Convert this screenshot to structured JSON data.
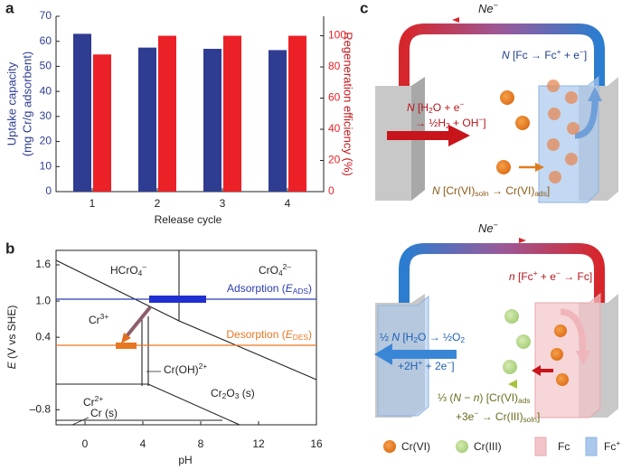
{
  "panel_a": {
    "label": "a",
    "type": "bar",
    "categories": [
      "1",
      "2",
      "3",
      "4"
    ],
    "xlabel": "Release cycle",
    "ylabel": [
      "Uptake capacity",
      "(mg Cr/g adsorbent)"
    ],
    "y2label": "Regeneration efficiency (%)",
    "ylim": [
      0,
      70
    ],
    "yticks": [
      0,
      10,
      20,
      30,
      40,
      50,
      60,
      70
    ],
    "y2lim": [
      0,
      112.5
    ],
    "y2ticks": [
      0,
      20,
      40,
      60,
      80,
      100
    ],
    "series": [
      {
        "color": "#2e3d92",
        "values": [
          63,
          57.5,
          57,
          56.5
        ]
      },
      {
        "color": "#ec2027",
        "axis": "y2",
        "values": [
          88,
          100,
          100,
          100
        ]
      }
    ]
  },
  "panel_b": {
    "label": "b",
    "xlabel": "pH",
    "ylabel": [
      [
        "E",
        "i"
      ],
      [
        " (V vs SHE)"
      ]
    ],
    "xlim": [
      -2,
      16
    ],
    "xticks": [
      0,
      4,
      8,
      12,
      16
    ],
    "ylim": [
      -1.05,
      1.84
    ],
    "yticks": [
      {
        "value": -0.8,
        "label": "–0.8"
      },
      0.4,
      {
        "value": 1,
        "label": "1.0"
      },
      1.6
    ],
    "adsorption": [
      [
        "Adsorption ("
      ],
      [
        "E",
        "i"
      ],
      [
        "ADS",
        "sub"
      ],
      [
        ")"
      ]
    ],
    "desorption": [
      [
        "Desorption ("
      ],
      [
        "E",
        "i"
      ],
      [
        "DES",
        "sub"
      ],
      [
        ")"
      ]
    ],
    "species": [
      [
        [
          "HCrO"
        ],
        [
          "4",
          "sub"
        ],
        [
          "–",
          "sup"
        ]
      ],
      [
        [
          "CrO"
        ],
        [
          "4",
          "sub"
        ],
        [
          "2–",
          "sup"
        ]
      ],
      [
        [
          "Cr"
        ],
        [
          "3+",
          "sup"
        ]
      ],
      [
        [
          "Cr(OH)"
        ],
        [
          "2+",
          "sup"
        ]
      ],
      [
        [
          "Cr"
        ],
        [
          "2+",
          "sup"
        ]
      ],
      [
        [
          "Cr"
        ],
        [
          "2",
          "sub"
        ],
        [
          "O"
        ],
        [
          "3",
          "sub"
        ],
        [
          " (s)"
        ]
      ],
      [
        [
          "Cr (s)"
        ]
      ]
    ]
  },
  "panel_c": {
    "label": "c",
    "top": {
      "current": [
        [
          "Ne",
          "i"
        ],
        [
          "−",
          "sup"
        ]
      ],
      "fc": [
        [
          "N",
          "i"
        ],
        [
          " [Fc → Fc"
        ],
        [
          "+",
          "sup"
        ],
        [
          " + e"
        ],
        [
          "−",
          "sup"
        ],
        [
          "]"
        ]
      ],
      "water": [
        [
          [
            "N",
            "i"
          ],
          [
            " [H"
          ],
          [
            "2",
            "sub"
          ],
          [
            "O + e"
          ],
          [
            "−",
            "sup"
          ]
        ],
        [
          [
            "→ ½H"
          ],
          [
            "2",
            "sub"
          ],
          [
            " + OH"
          ],
          [
            "−",
            "sup"
          ],
          [
            "]"
          ]
        ]
      ],
      "cr": [
        [
          "N",
          "i"
        ],
        [
          " [Cr(VI)"
        ],
        [
          "soln",
          "sub"
        ],
        [
          " → Cr(VI)"
        ],
        [
          "ads",
          "sub"
        ],
        [
          "]"
        ]
      ]
    },
    "bottom": {
      "current": [
        [
          "Ne",
          "i"
        ],
        [
          "−",
          "sup"
        ]
      ],
      "fc": [
        [
          "n",
          "i"
        ],
        [
          " [Fc"
        ],
        [
          "+",
          "sup"
        ],
        [
          " + e"
        ],
        [
          "−",
          "sup"
        ],
        [
          " → Fc]"
        ]
      ],
      "water": [
        [
          [
            "½ "
          ],
          [
            "N",
            "i"
          ],
          [
            " [H"
          ],
          [
            "2",
            "sub"
          ],
          [
            "O → ½O"
          ],
          [
            "2",
            "sub"
          ]
        ],
        [
          [
            "+2H"
          ],
          [
            "+",
            "sup"
          ],
          [
            " + 2e"
          ],
          [
            "−",
            "sup"
          ],
          [
            "]"
          ]
        ]
      ],
      "cr": [
        [
          [
            "⅓ ("
          ],
          [
            "N",
            "i"
          ],
          [
            " − "
          ],
          [
            "n",
            "i"
          ],
          [
            ") [Cr(VI)"
          ],
          [
            "ads",
            "sub"
          ]
        ],
        [
          [
            "+3e"
          ],
          [
            "−",
            "sup"
          ],
          [
            " → Cr(III)"
          ],
          [
            "soln",
            "sub"
          ],
          [
            "]"
          ]
        ]
      ]
    },
    "legend": [
      [
        [
          "Cr(VI)"
        ]
      ],
      [
        [
          "Cr(III)"
        ]
      ],
      [
        [
          "Fc"
        ]
      ],
      [
        [
          "Fc"
        ],
        [
          "+",
          "sup"
        ]
      ]
    ]
  }
}
